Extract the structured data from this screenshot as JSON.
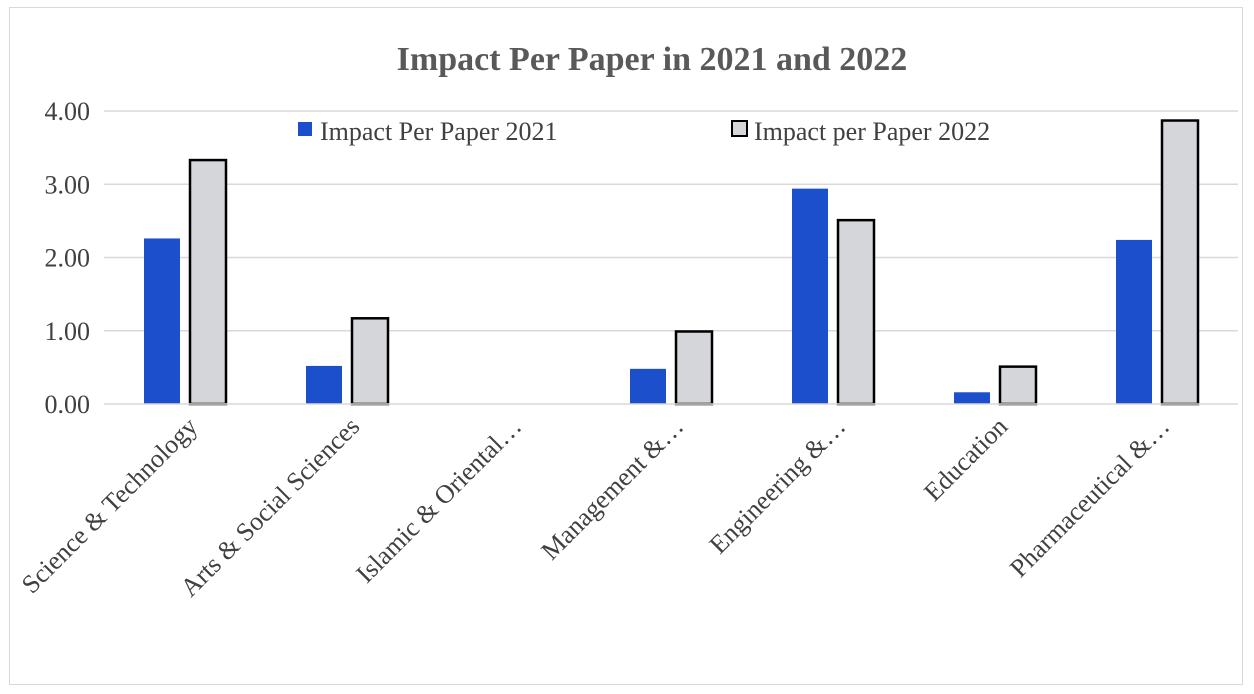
{
  "chart_data": {
    "type": "bar",
    "title": "Impact Per Paper in 2021 and 2022",
    "xlabel": "",
    "ylabel": "",
    "ylim": [
      0,
      4
    ],
    "y_ticks": [
      "0.00",
      "1.00",
      "2.00",
      "3.00",
      "4.00"
    ],
    "grid": true,
    "legend_position": "top",
    "categories": [
      "Science & Technology",
      "Arts & Social Sciences",
      "Islamic & Oriental…",
      "Management &…",
      "Engineering &…",
      "Education",
      "Pharmaceutical &…"
    ],
    "series": [
      {
        "name": "Impact Per Paper 2021",
        "color": "#1c4fcc",
        "values": [
          2.26,
          0.52,
          0,
          0.48,
          2.94,
          0.16,
          2.24
        ]
      },
      {
        "name": "Impact per Paper 2022",
        "color": "#d4d6da",
        "stroke": "#000000",
        "values": [
          3.33,
          1.17,
          0,
          0.99,
          2.51,
          0.51,
          3.87
        ]
      }
    ]
  }
}
